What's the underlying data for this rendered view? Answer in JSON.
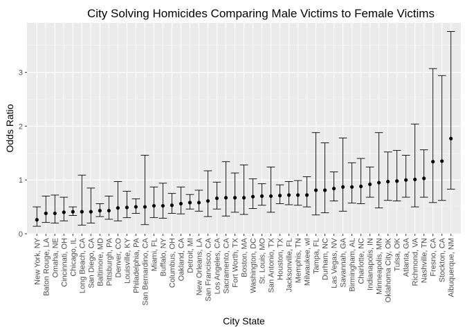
{
  "chart_data": {
    "type": "scatter",
    "title": "City Solving Homicides Comparing Male Victims to Female Victims",
    "xlabel": "City State",
    "ylabel": "Odds Ratio",
    "ylim": [
      0,
      3.92
    ],
    "yticks": [
      0,
      1,
      2,
      3
    ],
    "grid": true,
    "colors": {
      "panel": "#ebebeb",
      "grid_major": "#ffffff",
      "grid_minor": "#f5f5f5",
      "point": "#000000",
      "errorbar": "#000000",
      "tick_text": "#4d4d4d"
    },
    "points": [
      {
        "city": "New York, NY",
        "or": 0.26,
        "lo": 0.14,
        "hi": 0.5
      },
      {
        "city": "Baton Rouge, LA",
        "or": 0.38,
        "lo": 0.21,
        "hi": 0.7
      },
      {
        "city": "Omaha, NE",
        "or": 0.38,
        "lo": 0.2,
        "hi": 0.72
      },
      {
        "city": "Cincinnati, OH",
        "or": 0.4,
        "lo": 0.24,
        "hi": 0.68
      },
      {
        "city": "Chicago, IL",
        "or": 0.41,
        "lo": 0.34,
        "hi": 0.5
      },
      {
        "city": "Long Beach, CA",
        "or": 0.41,
        "lo": 0.16,
        "hi": 1.09
      },
      {
        "city": "San Diego, CA",
        "or": 0.41,
        "lo": 0.2,
        "hi": 0.85
      },
      {
        "city": "Baltimore, MD",
        "or": 0.43,
        "lo": 0.32,
        "hi": 0.56
      },
      {
        "city": "Pittsburgh, PA",
        "or": 0.43,
        "lo": 0.27,
        "hi": 0.7
      },
      {
        "city": "Denver, CO",
        "or": 0.48,
        "lo": 0.24,
        "hi": 0.97
      },
      {
        "city": "Louisville, KY",
        "or": 0.49,
        "lo": 0.3,
        "hi": 0.79
      },
      {
        "city": "Philadelphia, PA",
        "or": 0.5,
        "lo": 0.38,
        "hi": 0.65
      },
      {
        "city": "San Bernardino, CA",
        "or": 0.5,
        "lo": 0.17,
        "hi": 1.46
      },
      {
        "city": "Miami, FL",
        "or": 0.52,
        "lo": 0.3,
        "hi": 0.87
      },
      {
        "city": "Buffalo, NY",
        "or": 0.52,
        "lo": 0.29,
        "hi": 0.94
      },
      {
        "city": "Columbus, OH",
        "or": 0.53,
        "lo": 0.38,
        "hi": 0.75
      },
      {
        "city": "Oakland, CA",
        "or": 0.56,
        "lo": 0.37,
        "hi": 0.87
      },
      {
        "city": "Detroit, MI",
        "or": 0.58,
        "lo": 0.46,
        "hi": 0.73
      },
      {
        "city": "New Orleans, LA",
        "or": 0.58,
        "lo": 0.42,
        "hi": 0.81
      },
      {
        "city": "San Francisco, CA",
        "or": 0.61,
        "lo": 0.32,
        "hi": 1.17
      },
      {
        "city": "Los Angeles, CA",
        "or": 0.66,
        "lo": 0.46,
        "hi": 0.96
      },
      {
        "city": "Sacramento, CA",
        "or": 0.67,
        "lo": 0.33,
        "hi": 1.34
      },
      {
        "city": "Fort Worth, TX",
        "or": 0.67,
        "lo": 0.4,
        "hi": 1.13
      },
      {
        "city": "Boston, MA",
        "or": 0.67,
        "lo": 0.36,
        "hi": 1.28
      },
      {
        "city": "Washington, DC",
        "or": 0.69,
        "lo": 0.47,
        "hi": 1.02
      },
      {
        "city": "St. Louis, MO",
        "or": 0.7,
        "lo": 0.53,
        "hi": 0.93
      },
      {
        "city": "San Antonio, TX",
        "or": 0.7,
        "lo": 0.4,
        "hi": 1.24
      },
      {
        "city": "Houston, TX",
        "or": 0.71,
        "lo": 0.56,
        "hi": 0.91
      },
      {
        "city": "Jacksonville, FL",
        "or": 0.72,
        "lo": 0.54,
        "hi": 0.97
      },
      {
        "city": "Memphis, TN",
        "or": 0.72,
        "lo": 0.53,
        "hi": 0.99
      },
      {
        "city": "Milwaukee, wI",
        "or": 0.72,
        "lo": 0.5,
        "hi": 1.06
      },
      {
        "city": "Tampa, FL",
        "or": 0.81,
        "lo": 0.35,
        "hi": 1.88
      },
      {
        "city": "Durham, NC",
        "or": 0.81,
        "lo": 0.39,
        "hi": 1.69
      },
      {
        "city": "Las Vegas, NV",
        "or": 0.84,
        "lo": 0.61,
        "hi": 1.15
      },
      {
        "city": "Savannah, GA",
        "or": 0.87,
        "lo": 0.42,
        "hi": 1.78
      },
      {
        "city": "Birmingham, AL",
        "or": 0.87,
        "lo": 0.57,
        "hi": 1.32
      },
      {
        "city": "Charlotte, NC",
        "or": 0.88,
        "lo": 0.56,
        "hi": 1.4
      },
      {
        "city": "Indianapolis, IN",
        "or": 0.92,
        "lo": 0.68,
        "hi": 1.24
      },
      {
        "city": "Minneapolis, MN",
        "or": 0.95,
        "lo": 0.48,
        "hi": 1.88
      },
      {
        "city": "Oklahoma City, OK",
        "or": 0.97,
        "lo": 0.62,
        "hi": 1.52
      },
      {
        "city": "Tulsa, OK",
        "or": 0.98,
        "lo": 0.61,
        "hi": 1.55
      },
      {
        "city": "Atlanta, GA",
        "or": 1.0,
        "lo": 0.68,
        "hi": 1.46
      },
      {
        "city": "Richmond, VA",
        "or": 1.01,
        "lo": 0.5,
        "hi": 2.04
      },
      {
        "city": "Nashville, TN",
        "or": 1.03,
        "lo": 0.68,
        "hi": 1.56
      },
      {
        "city": "Fresno, CA",
        "or": 1.34,
        "lo": 0.58,
        "hi": 3.07
      },
      {
        "city": "Stockton, CA",
        "or": 1.35,
        "lo": 0.62,
        "hi": 2.94
      },
      {
        "city": "Albuquerque, NM",
        "or": 1.77,
        "lo": 0.83,
        "hi": 3.76
      }
    ]
  }
}
